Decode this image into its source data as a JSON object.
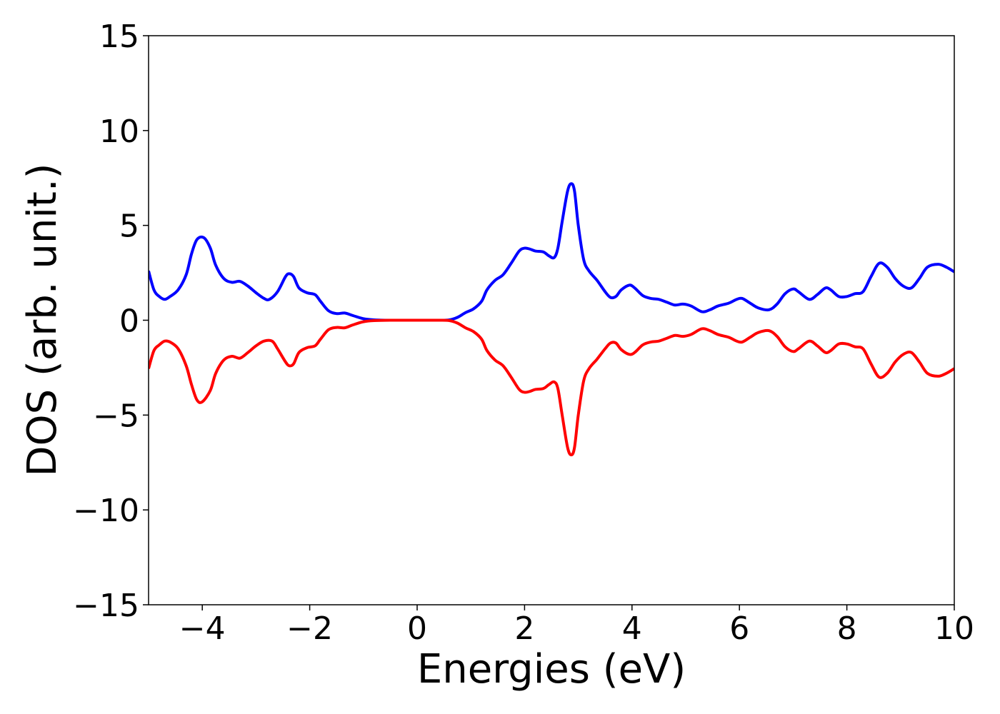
{
  "chart_data": {
    "type": "line",
    "title": "",
    "xlabel": "Energies (eV)",
    "ylabel": "DOS (arb. unit.)",
    "xlim": [
      -5,
      10
    ],
    "ylim": [
      -15,
      15
    ],
    "grid": false,
    "legend": "none",
    "x_ticks": [
      -4,
      -2,
      0,
      2,
      4,
      6,
      8,
      10
    ],
    "x_tick_labels": [
      "−4",
      "−2",
      "0",
      "2",
      "4",
      "6",
      "8",
      "10"
    ],
    "y_ticks": [
      15,
      10,
      5,
      0,
      -5,
      -10,
      -15
    ],
    "y_tick_labels": [
      "15",
      "10",
      "5",
      "0",
      "−5",
      "−10",
      "−15"
    ],
    "series": [
      {
        "color": "#0000ff",
        "points": [
          [
            -5.0,
            2.6
          ],
          [
            -4.9,
            1.6
          ],
          [
            -4.8,
            1.25
          ],
          [
            -4.7,
            1.1
          ],
          [
            -4.6,
            1.25
          ],
          [
            -4.45,
            1.6
          ],
          [
            -4.3,
            2.4
          ],
          [
            -4.2,
            3.5
          ],
          [
            -4.1,
            4.25
          ],
          [
            -3.97,
            4.35
          ],
          [
            -3.85,
            3.8
          ],
          [
            -3.75,
            2.9
          ],
          [
            -3.6,
            2.2
          ],
          [
            -3.45,
            2.0
          ],
          [
            -3.3,
            2.05
          ],
          [
            -3.15,
            1.8
          ],
          [
            -3.0,
            1.45
          ],
          [
            -2.85,
            1.15
          ],
          [
            -2.75,
            1.1
          ],
          [
            -2.6,
            1.5
          ],
          [
            -2.45,
            2.3
          ],
          [
            -2.38,
            2.45
          ],
          [
            -2.3,
            2.3
          ],
          [
            -2.2,
            1.7
          ],
          [
            -2.05,
            1.45
          ],
          [
            -1.9,
            1.35
          ],
          [
            -1.8,
            1.0
          ],
          [
            -1.65,
            0.5
          ],
          [
            -1.5,
            0.35
          ],
          [
            -1.35,
            0.38
          ],
          [
            -1.2,
            0.25
          ],
          [
            -1.0,
            0.08
          ],
          [
            -0.8,
            0.02
          ],
          [
            -0.5,
            0.0
          ],
          [
            0.0,
            0.0
          ],
          [
            0.4,
            0.0
          ],
          [
            0.6,
            0.02
          ],
          [
            0.75,
            0.15
          ],
          [
            0.9,
            0.4
          ],
          [
            1.05,
            0.6
          ],
          [
            1.2,
            1.0
          ],
          [
            1.3,
            1.6
          ],
          [
            1.45,
            2.1
          ],
          [
            1.6,
            2.4
          ],
          [
            1.75,
            3.0
          ],
          [
            1.9,
            3.65
          ],
          [
            2.0,
            3.8
          ],
          [
            2.1,
            3.75
          ],
          [
            2.2,
            3.65
          ],
          [
            2.35,
            3.6
          ],
          [
            2.45,
            3.4
          ],
          [
            2.55,
            3.3
          ],
          [
            2.62,
            3.8
          ],
          [
            2.7,
            5.2
          ],
          [
            2.8,
            6.8
          ],
          [
            2.87,
            7.2
          ],
          [
            2.93,
            6.8
          ],
          [
            3.0,
            5.0
          ],
          [
            3.1,
            3.2
          ],
          [
            3.2,
            2.6
          ],
          [
            3.35,
            2.1
          ],
          [
            3.5,
            1.5
          ],
          [
            3.6,
            1.2
          ],
          [
            3.7,
            1.25
          ],
          [
            3.8,
            1.6
          ],
          [
            3.95,
            1.85
          ],
          [
            4.05,
            1.7
          ],
          [
            4.2,
            1.3
          ],
          [
            4.35,
            1.15
          ],
          [
            4.5,
            1.1
          ],
          [
            4.65,
            0.95
          ],
          [
            4.8,
            0.8
          ],
          [
            4.95,
            0.85
          ],
          [
            5.1,
            0.75
          ],
          [
            5.3,
            0.45
          ],
          [
            5.45,
            0.55
          ],
          [
            5.6,
            0.75
          ],
          [
            5.8,
            0.9
          ],
          [
            5.95,
            1.1
          ],
          [
            6.05,
            1.15
          ],
          [
            6.2,
            0.9
          ],
          [
            6.35,
            0.65
          ],
          [
            6.55,
            0.55
          ],
          [
            6.7,
            0.85
          ],
          [
            6.85,
            1.4
          ],
          [
            7.0,
            1.65
          ],
          [
            7.1,
            1.5
          ],
          [
            7.3,
            1.1
          ],
          [
            7.45,
            1.35
          ],
          [
            7.6,
            1.7
          ],
          [
            7.7,
            1.6
          ],
          [
            7.85,
            1.25
          ],
          [
            8.0,
            1.25
          ],
          [
            8.15,
            1.4
          ],
          [
            8.3,
            1.5
          ],
          [
            8.45,
            2.3
          ],
          [
            8.6,
            3.0
          ],
          [
            8.75,
            2.8
          ],
          [
            8.9,
            2.2
          ],
          [
            9.05,
            1.8
          ],
          [
            9.2,
            1.7
          ],
          [
            9.35,
            2.2
          ],
          [
            9.5,
            2.8
          ],
          [
            9.7,
            2.95
          ],
          [
            9.85,
            2.8
          ],
          [
            10.0,
            2.55
          ]
        ]
      },
      {
        "color": "#ff0000",
        "points": [
          [
            -5.0,
            -2.55
          ],
          [
            -4.9,
            -1.6
          ],
          [
            -4.8,
            -1.3
          ],
          [
            -4.7,
            -1.1
          ],
          [
            -4.6,
            -1.15
          ],
          [
            -4.45,
            -1.5
          ],
          [
            -4.3,
            -2.4
          ],
          [
            -4.2,
            -3.4
          ],
          [
            -4.1,
            -4.2
          ],
          [
            -4.0,
            -4.3
          ],
          [
            -3.85,
            -3.7
          ],
          [
            -3.75,
            -2.8
          ],
          [
            -3.6,
            -2.1
          ],
          [
            -3.45,
            -1.9
          ],
          [
            -3.3,
            -2.0
          ],
          [
            -3.15,
            -1.7
          ],
          [
            -3.0,
            -1.35
          ],
          [
            -2.85,
            -1.1
          ],
          [
            -2.7,
            -1.1
          ],
          [
            -2.6,
            -1.5
          ],
          [
            -2.45,
            -2.2
          ],
          [
            -2.38,
            -2.4
          ],
          [
            -2.3,
            -2.3
          ],
          [
            -2.2,
            -1.7
          ],
          [
            -2.05,
            -1.45
          ],
          [
            -1.9,
            -1.35
          ],
          [
            -1.8,
            -1.0
          ],
          [
            -1.65,
            -0.5
          ],
          [
            -1.5,
            -0.38
          ],
          [
            -1.35,
            -0.4
          ],
          [
            -1.2,
            -0.25
          ],
          [
            -1.0,
            -0.08
          ],
          [
            -0.8,
            -0.02
          ],
          [
            -0.5,
            0.0
          ],
          [
            0.0,
            0.0
          ],
          [
            0.4,
            0.0
          ],
          [
            0.6,
            -0.02
          ],
          [
            0.75,
            -0.15
          ],
          [
            0.9,
            -0.4
          ],
          [
            1.05,
            -0.6
          ],
          [
            1.2,
            -1.0
          ],
          [
            1.3,
            -1.6
          ],
          [
            1.45,
            -2.1
          ],
          [
            1.6,
            -2.4
          ],
          [
            1.75,
            -3.0
          ],
          [
            1.9,
            -3.65
          ],
          [
            2.0,
            -3.8
          ],
          [
            2.1,
            -3.75
          ],
          [
            2.2,
            -3.65
          ],
          [
            2.35,
            -3.6
          ],
          [
            2.45,
            -3.4
          ],
          [
            2.55,
            -3.25
          ],
          [
            2.62,
            -3.6
          ],
          [
            2.7,
            -5.0
          ],
          [
            2.8,
            -6.7
          ],
          [
            2.87,
            -7.1
          ],
          [
            2.93,
            -6.7
          ],
          [
            3.0,
            -5.0
          ],
          [
            3.1,
            -3.2
          ],
          [
            3.2,
            -2.55
          ],
          [
            3.35,
            -2.05
          ],
          [
            3.5,
            -1.5
          ],
          [
            3.6,
            -1.2
          ],
          [
            3.7,
            -1.2
          ],
          [
            3.8,
            -1.55
          ],
          [
            3.95,
            -1.8
          ],
          [
            4.05,
            -1.7
          ],
          [
            4.2,
            -1.3
          ],
          [
            4.35,
            -1.15
          ],
          [
            4.5,
            -1.1
          ],
          [
            4.65,
            -0.95
          ],
          [
            4.8,
            -0.8
          ],
          [
            4.95,
            -0.85
          ],
          [
            5.1,
            -0.75
          ],
          [
            5.3,
            -0.45
          ],
          [
            5.45,
            -0.55
          ],
          [
            5.6,
            -0.75
          ],
          [
            5.8,
            -0.9
          ],
          [
            5.95,
            -1.1
          ],
          [
            6.05,
            -1.15
          ],
          [
            6.2,
            -0.9
          ],
          [
            6.35,
            -0.65
          ],
          [
            6.55,
            -0.55
          ],
          [
            6.7,
            -0.85
          ],
          [
            6.85,
            -1.4
          ],
          [
            7.0,
            -1.65
          ],
          [
            7.1,
            -1.5
          ],
          [
            7.3,
            -1.1
          ],
          [
            7.45,
            -1.35
          ],
          [
            7.6,
            -1.7
          ],
          [
            7.7,
            -1.6
          ],
          [
            7.85,
            -1.25
          ],
          [
            8.0,
            -1.25
          ],
          [
            8.15,
            -1.4
          ],
          [
            8.3,
            -1.5
          ],
          [
            8.45,
            -2.3
          ],
          [
            8.6,
            -3.0
          ],
          [
            8.75,
            -2.8
          ],
          [
            8.9,
            -2.2
          ],
          [
            9.05,
            -1.8
          ],
          [
            9.2,
            -1.7
          ],
          [
            9.35,
            -2.2
          ],
          [
            9.5,
            -2.8
          ],
          [
            9.7,
            -2.95
          ],
          [
            9.85,
            -2.8
          ],
          [
            10.0,
            -2.55
          ]
        ]
      }
    ]
  }
}
